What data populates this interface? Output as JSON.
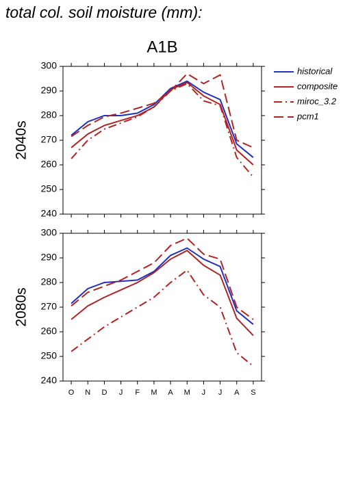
{
  "title": "total col. soil moisture (mm):",
  "chart_data": [
    {
      "type": "line",
      "title": "A1B",
      "ylabel": "2040s",
      "ylim": [
        240,
        300
      ],
      "yticks": [
        240,
        250,
        260,
        270,
        280,
        290,
        300
      ],
      "series": [
        {
          "name": "historical",
          "color": "#1f2fbf",
          "dash": "solid",
          "values": [
            272,
            277.5,
            280,
            280,
            281,
            284.5,
            291,
            294,
            289.5,
            286.5,
            268.5,
            263
          ]
        },
        {
          "name": "composite",
          "color": "#b22222",
          "dash": "solid",
          "values": [
            267,
            272.5,
            276,
            278,
            280,
            283.5,
            290.5,
            293.5,
            288,
            284.5,
            266,
            260
          ]
        },
        {
          "name": "miroc_3.2",
          "color": "#b22222",
          "dash": "dashdot",
          "values": [
            262.5,
            270,
            274.5,
            277,
            279.5,
            283.5,
            290,
            293,
            286,
            284,
            263,
            255
          ]
        },
        {
          "name": "pcm1",
          "color": "#b22222",
          "dash": "longdash",
          "values": [
            271.5,
            276,
            279.5,
            281,
            283,
            285,
            290,
            297,
            293,
            296.5,
            270,
            267
          ]
        }
      ]
    },
    {
      "type": "line",
      "ylabel": "2080s",
      "categories": [
        "O",
        "N",
        "D",
        "J",
        "F",
        "M",
        "A",
        "M",
        "J",
        "J",
        "A",
        "S"
      ],
      "ylim": [
        240,
        300
      ],
      "yticks": [
        240,
        250,
        260,
        270,
        280,
        290,
        300
      ],
      "series": [
        {
          "color": "#1f2fbf",
          "dash": "solid",
          "values": [
            271.5,
            277.5,
            280,
            280.5,
            281,
            284.5,
            291,
            294,
            289.5,
            286.5,
            268.5,
            263
          ]
        },
        {
          "color": "#b22222",
          "dash": "solid",
          "values": [
            265,
            270.5,
            274,
            277,
            280,
            284,
            289.5,
            293,
            287,
            283,
            265.5,
            258.5
          ]
        },
        {
          "color": "#b22222",
          "dash": "dashdot",
          "values": [
            252,
            257,
            262,
            266,
            270,
            274,
            280,
            285,
            275,
            270,
            251.5,
            246
          ]
        },
        {
          "color": "#b22222",
          "dash": "longdash",
          "values": [
            270.5,
            276,
            278.5,
            281,
            284.5,
            288,
            295,
            298,
            291.5,
            289.5,
            270,
            265
          ]
        }
      ]
    }
  ]
}
